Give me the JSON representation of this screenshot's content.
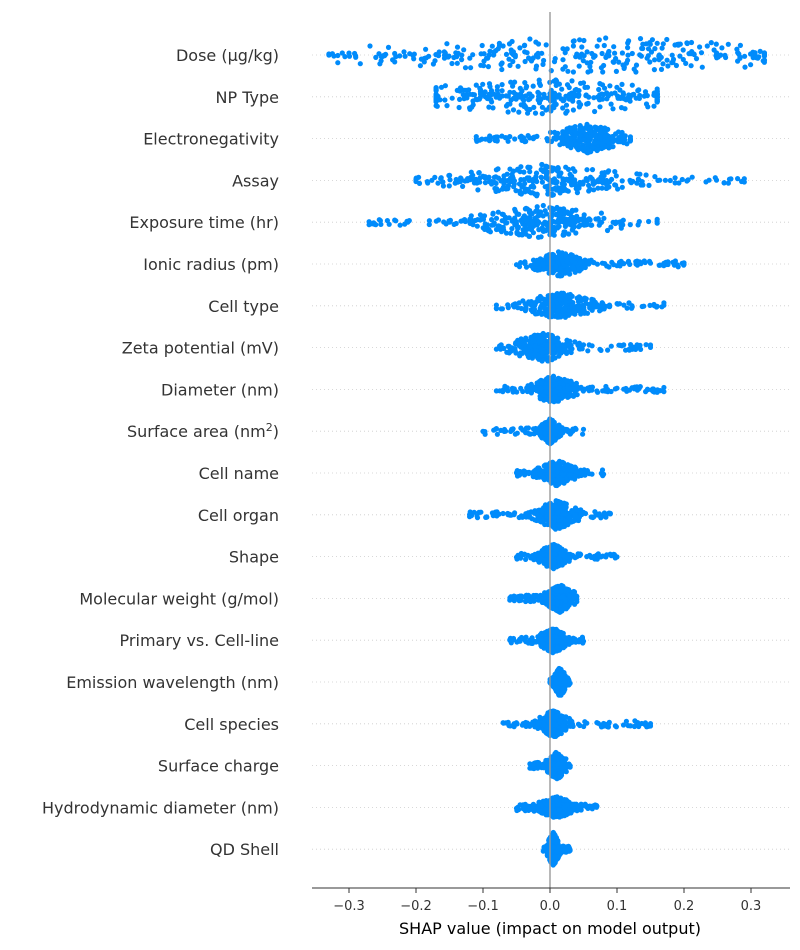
{
  "chart_data": {
    "type": "scatter",
    "subtype": "shap-beeswarm-summary",
    "title": "",
    "xlabel": "SHAP value (impact on model output)",
    "ylabel": "",
    "xlim": [
      -0.36,
      0.36
    ],
    "xticks": [
      -0.3,
      -0.2,
      -0.1,
      0.0,
      0.1,
      0.2,
      0.3
    ],
    "xtick_labels": [
      "−0.3",
      "−0.2",
      "−0.1",
      "0.0",
      "0.1",
      "0.2",
      "0.3"
    ],
    "zero_line": true,
    "grid": "dotted horizontal row guides",
    "legend": "none",
    "point_color": "#008bfb",
    "zero_line_color": "#999999",
    "features": [
      {
        "name": "Dose (µg/kg)",
        "label_main": "Dose (µg/kg)",
        "label_sup": "",
        "label_end": "",
        "min": -0.33,
        "max": 0.32,
        "core": [
          -0.18,
          0.3
        ],
        "spread": 0.45,
        "outliers": [
          -0.31,
          -0.3,
          -0.29,
          -0.26
        ]
      },
      {
        "name": "NP Type",
        "label_main": "NP Type",
        "label_sup": "",
        "label_end": "",
        "min": -0.17,
        "max": 0.16,
        "core": [
          -0.16,
          0.16
        ],
        "spread": 0.42,
        "outliers": []
      },
      {
        "name": "Electronegativity",
        "label_main": "Electronegativity",
        "label_sup": "",
        "label_end": "",
        "min": -0.11,
        "max": 0.12,
        "core": [
          0.02,
          0.09
        ],
        "spread": 0.35,
        "outliers": [
          -0.11,
          -0.09,
          -0.06,
          0.11,
          0.12
        ]
      },
      {
        "name": "Assay",
        "label_main": "Assay",
        "label_sup": "",
        "label_end": "",
        "min": -0.2,
        "max": 0.29,
        "core": [
          -0.1,
          0.08
        ],
        "spread": 0.38,
        "outliers": [
          -0.2,
          -0.16,
          -0.14,
          0.26,
          0.27,
          0.28,
          0.29
        ]
      },
      {
        "name": "Exposure time (hr)",
        "label_main": "Exposure time (hr)",
        "label_sup": "",
        "label_end": "",
        "min": -0.27,
        "max": 0.16,
        "core": [
          -0.08,
          0.06
        ],
        "spread": 0.4,
        "outliers": [
          -0.27,
          -0.26,
          -0.24,
          -0.21,
          -0.18,
          -0.14,
          0.16
        ]
      },
      {
        "name": "Ionic radius (pm)",
        "label_main": "Ionic radius (pm)",
        "label_sup": "",
        "label_end": "",
        "min": -0.05,
        "max": 0.2,
        "core": [
          -0.01,
          0.04
        ],
        "spread": 0.3,
        "outliers": [
          0.1,
          0.13,
          0.15,
          0.17,
          0.19,
          0.2
        ]
      },
      {
        "name": "Cell type",
        "label_main": "Cell type",
        "label_sup": "",
        "label_end": "",
        "min": -0.08,
        "max": 0.17,
        "core": [
          -0.02,
          0.05
        ],
        "spread": 0.32,
        "outliers": [
          -0.08,
          0.14,
          0.16,
          0.17
        ]
      },
      {
        "name": "Zeta potential (mV)",
        "label_main": "Zeta potential (mV)",
        "label_sup": "",
        "label_end": "",
        "min": -0.08,
        "max": 0.15,
        "core": [
          -0.04,
          0.02
        ],
        "spread": 0.35,
        "outliers": [
          0.13,
          0.15
        ]
      },
      {
        "name": "Diameter (nm)",
        "label_main": "Diameter (nm)",
        "label_sup": "",
        "label_end": "",
        "min": -0.08,
        "max": 0.17,
        "core": [
          -0.02,
          0.03
        ],
        "spread": 0.32,
        "outliers": [
          0.07,
          0.1,
          0.11,
          0.16,
          0.17
        ]
      },
      {
        "name": "Surface area (nm2)",
        "label_main": "Surface area (nm",
        "label_sup": "2",
        "label_end": ")",
        "min": -0.1,
        "max": 0.05,
        "core": [
          -0.01,
          0.01
        ],
        "spread": 0.3,
        "outliers": []
      },
      {
        "name": "Cell name",
        "label_main": "Cell name",
        "label_sup": "",
        "label_end": "",
        "min": -0.05,
        "max": 0.08,
        "core": [
          -0.01,
          0.03
        ],
        "spread": 0.3,
        "outliers": []
      },
      {
        "name": "Cell organ",
        "label_main": "Cell organ",
        "label_sup": "",
        "label_end": "",
        "min": -0.12,
        "max": 0.09,
        "core": [
          -0.01,
          0.03
        ],
        "spread": 0.35,
        "outliers": [
          -0.12,
          -0.07,
          -0.06,
          0.09
        ]
      },
      {
        "name": "Shape",
        "label_main": "Shape",
        "label_sup": "",
        "label_end": "",
        "min": -0.05,
        "max": 0.1,
        "core": [
          -0.01,
          0.02
        ],
        "spread": 0.3,
        "outliers": []
      },
      {
        "name": "Molecular weight (g/mol)",
        "label_main": "Molecular weight (g/mol)",
        "label_sup": "",
        "label_end": "",
        "min": -0.06,
        "max": 0.04,
        "core": [
          0.0,
          0.03
        ],
        "spread": 0.33,
        "outliers": []
      },
      {
        "name": "Primary vs. Cell-line",
        "label_main": "Primary vs. Cell-line",
        "label_sup": "",
        "label_end": "",
        "min": -0.06,
        "max": 0.05,
        "core": [
          -0.01,
          0.02
        ],
        "spread": 0.3,
        "outliers": []
      },
      {
        "name": "Emission wavelength (nm)",
        "label_main": "Emission wavelength (nm)",
        "label_sup": "",
        "label_end": "",
        "min": 0.0,
        "max": 0.03,
        "core": [
          0.01,
          0.02
        ],
        "spread": 0.35,
        "outliers": []
      },
      {
        "name": "Cell species",
        "label_main": "Cell species",
        "label_sup": "",
        "label_end": "",
        "min": -0.07,
        "max": 0.15,
        "core": [
          -0.01,
          0.02
        ],
        "spread": 0.33,
        "outliers": [
          0.07,
          0.08,
          0.12,
          0.15
        ]
      },
      {
        "name": "Surface charge",
        "label_main": "Surface charge",
        "label_sup": "",
        "label_end": "",
        "min": -0.03,
        "max": 0.03,
        "core": [
          0.0,
          0.02
        ],
        "spread": 0.33,
        "outliers": [
          -0.03,
          -0.01
        ]
      },
      {
        "name": "Hydrodynamic diameter (nm)",
        "label_main": "Hydrodynamic diameter (nm)",
        "label_sup": "",
        "label_end": "",
        "min": -0.05,
        "max": 0.07,
        "core": [
          -0.01,
          0.03
        ],
        "spread": 0.25,
        "outliers": []
      },
      {
        "name": "QD Shell",
        "label_main": "QD Shell",
        "label_sup": "",
        "label_end": "",
        "min": -0.01,
        "max": 0.03,
        "core": [
          0.0,
          0.01
        ],
        "spread": 0.4,
        "outliers": []
      }
    ]
  }
}
